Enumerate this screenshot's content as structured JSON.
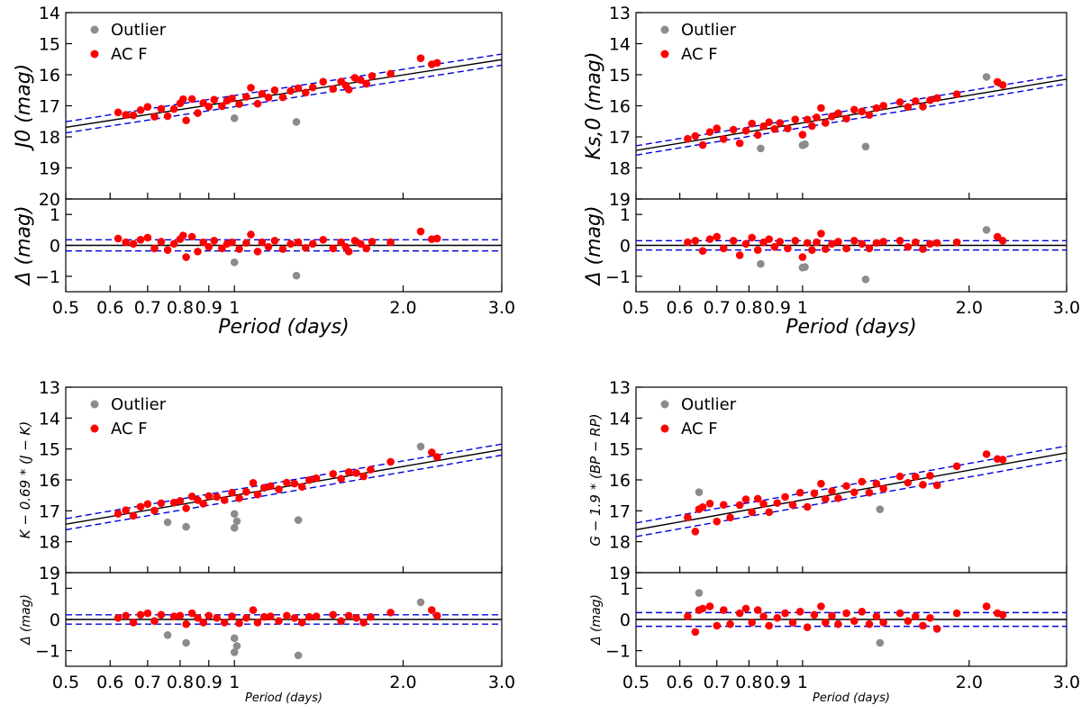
{
  "chart_data": [
    {
      "type": "scatter",
      "title": "",
      "xlabel": "Period (days)",
      "xscale": "log",
      "xlim": [
        0.5,
        3.0
      ],
      "xticks": [
        0.5,
        0.6,
        0.7,
        0.8,
        0.9,
        1,
        2.0,
        3.0
      ],
      "xtick_labels": [
        "0.5",
        "0.6",
        "0.7",
        "0.8",
        "0.9",
        "1",
        "2.0",
        "3.0"
      ],
      "top": {
        "ylabel": "J0 (mag)",
        "ylim": [
          20,
          14
        ],
        "yticks": [
          14,
          15,
          16,
          17,
          18,
          19,
          20
        ],
        "fit": {
          "a": -1.51,
          "b": -2.8
        },
        "band": 0.18
      },
      "bottom": {
        "ylabel": "Δ (mag)",
        "ylim": [
          -1.5,
          1.5
        ],
        "yticks": [
          -1,
          0,
          1
        ],
        "band": 0.18
      },
      "legend": {
        "position": "top-left",
        "items": [
          "Outlier",
          "AC F"
        ]
      },
      "series": [
        {
          "name": "AC F",
          "color": "#ff0000",
          "x": [
            0.62,
            0.64,
            0.66,
            0.68,
            0.7,
            0.72,
            0.74,
            0.76,
            0.78,
            0.8,
            0.81,
            0.82,
            0.84,
            0.86,
            0.88,
            0.9,
            0.92,
            0.95,
            0.97,
            0.99,
            1.02,
            1.05,
            1.07,
            1.1,
            1.12,
            1.15,
            1.18,
            1.22,
            1.26,
            1.3,
            1.34,
            1.38,
            1.44,
            1.5,
            1.55,
            1.58,
            1.6,
            1.64,
            1.68,
            1.72,
            1.76,
            1.9,
            2.15,
            2.25,
            2.3
          ],
          "delta": [
            0.22,
            0.1,
            0.05,
            0.18,
            0.25,
            -0.1,
            0.12,
            -0.15,
            0.05,
            0.2,
            0.32,
            -0.38,
            0.28,
            -0.2,
            0.1,
            -0.05,
            0.15,
            -0.1,
            0.05,
            0.1,
            -0.12,
            0.08,
            0.35,
            -0.2,
            0.1,
            -0.05,
            0.15,
            -0.12,
            0.05,
            0.1,
            -0.08,
            0.05,
            0.18,
            -0.1,
            0.1,
            -0.05,
            -0.2,
            0.15,
            0.05,
            -0.1,
            0.12,
            0.1,
            0.45,
            0.2,
            0.22
          ]
        },
        {
          "name": "Outlier",
          "color": "#8c8c8c",
          "x": [
            1.0,
            1.29
          ],
          "delta": [
            -0.55,
            -0.98
          ]
        }
      ]
    },
    {
      "type": "scatter",
      "title": "",
      "xlabel": "Period (days)",
      "xscale": "log",
      "xlim": [
        0.5,
        3.0
      ],
      "xticks": [
        0.5,
        0.6,
        0.7,
        0.8,
        0.9,
        1,
        2.0,
        3.0
      ],
      "xtick_labels": [
        "0.5",
        "0.6",
        "0.7",
        "0.8",
        "0.9",
        "1",
        "2.0",
        "3.0"
      ],
      "top": {
        "ylabel": "Ks,0 (mag)",
        "ylim": [
          19,
          13
        ],
        "yticks": [
          13,
          14,
          15,
          16,
          17,
          18,
          19
        ],
        "fit": {
          "a": -1.62,
          "b": -2.95
        },
        "band": 0.15
      },
      "bottom": {
        "ylabel": "Δ (mag)",
        "ylim": [
          -1.5,
          1.5
        ],
        "yticks": [
          -1,
          0,
          1
        ],
        "band": 0.15
      },
      "legend": {
        "position": "top-left",
        "items": [
          "Outlier",
          "AC F"
        ]
      },
      "series": [
        {
          "name": "AC F",
          "color": "#ff0000",
          "x": [
            0.62,
            0.64,
            0.66,
            0.68,
            0.7,
            0.72,
            0.75,
            0.77,
            0.79,
            0.81,
            0.83,
            0.85,
            0.87,
            0.89,
            0.91,
            0.94,
            0.97,
            1.0,
            1.02,
            1.04,
            1.06,
            1.08,
            1.1,
            1.13,
            1.16,
            1.2,
            1.24,
            1.28,
            1.32,
            1.36,
            1.4,
            1.5,
            1.55,
            1.6,
            1.65,
            1.7,
            1.75,
            1.9,
            2.25,
            2.3
          ],
          "delta": [
            0.1,
            0.15,
            -0.18,
            0.2,
            0.28,
            -0.1,
            0.15,
            -0.32,
            0.05,
            0.25,
            -0.15,
            0.1,
            0.2,
            -0.05,
            0.12,
            -0.1,
            0.15,
            -0.38,
            0.08,
            -0.15,
            0.1,
            0.38,
            -0.12,
            0.05,
            0.12,
            -0.1,
            0.15,
            0.05,
            -0.1,
            0.08,
            0.12,
            0.15,
            -0.05,
            0.1,
            -0.12,
            0.05,
            0.08,
            0.1,
            0.28,
            0.15
          ]
        },
        {
          "name": "Outlier",
          "color": "#8c8c8c",
          "x": [
            0.84,
            1.0,
            1.01,
            1.3,
            2.15
          ],
          "delta": [
            -0.6,
            -0.72,
            -0.7,
            -1.1,
            0.5
          ]
        }
      ]
    },
    {
      "type": "scatter",
      "title": "",
      "xlabel": "Period (days)",
      "xscale": "log",
      "xlim": [
        0.5,
        3.0
      ],
      "xticks": [
        0.5,
        0.6,
        0.7,
        0.8,
        0.9,
        1,
        2.0,
        3.0
      ],
      "xtick_labels": [
        "0.5",
        "0.6",
        "0.7",
        "0.8",
        "0.9",
        "1",
        "2.0",
        "3.0"
      ],
      "top": {
        "ylabel": "K − 0.69 * (J − K)",
        "ylim": [
          19,
          13
        ],
        "yticks": [
          13,
          14,
          15,
          16,
          17,
          18,
          19
        ],
        "fit": {
          "a": -1.51,
          "b": -3.1
        },
        "band": 0.18
      },
      "bottom": {
        "ylabel": "Δ (mag)",
        "ylim": [
          -1.5,
          1.5
        ],
        "yticks": [
          -1,
          0,
          1
        ],
        "band": 0.15
      },
      "legend": {
        "position": "top-left",
        "items": [
          "Outlier",
          "AC F"
        ]
      },
      "series": [
        {
          "name": "AC F",
          "color": "#ff0000",
          "x": [
            0.62,
            0.64,
            0.66,
            0.68,
            0.7,
            0.72,
            0.74,
            0.78,
            0.8,
            0.82,
            0.84,
            0.86,
            0.88,
            0.9,
            0.93,
            0.96,
            0.99,
            1.02,
            1.05,
            1.08,
            1.1,
            1.13,
            1.16,
            1.2,
            1.24,
            1.28,
            1.32,
            1.36,
            1.4,
            1.5,
            1.55,
            1.6,
            1.65,
            1.7,
            1.75,
            1.9,
            2.25,
            2.3
          ],
          "delta": [
            0.05,
            0.12,
            -0.1,
            0.15,
            0.2,
            -0.05,
            0.15,
            0.1,
            0.12,
            -0.15,
            0.2,
            0.05,
            -0.1,
            0.12,
            0.05,
            -0.1,
            0.1,
            -0.12,
            0.05,
            0.3,
            -0.1,
            0.08,
            0.1,
            -0.05,
            0.12,
            0.05,
            -0.1,
            0.08,
            0.1,
            0.15,
            -0.05,
            0.12,
            0.05,
            -0.1,
            0.08,
            0.22,
            0.3,
            0.12
          ]
        },
        {
          "name": "Outlier",
          "color": "#8c8c8c",
          "x": [
            0.76,
            0.82,
            1.0,
            1.0,
            1.01,
            1.3,
            2.15
          ],
          "delta": [
            -0.5,
            -0.75,
            -0.6,
            -1.05,
            -0.85,
            -1.15,
            0.55
          ]
        }
      ]
    },
    {
      "type": "scatter",
      "title": "",
      "xlabel": "Period (days)",
      "xscale": "log",
      "xlim": [
        0.5,
        3.0
      ],
      "xticks": [
        0.5,
        0.6,
        0.7,
        0.8,
        0.9,
        1,
        2.0,
        3.0
      ],
      "xtick_labels": [
        "0.5",
        "0.6",
        "0.7",
        "0.8",
        "0.9",
        "1",
        "2.0",
        "3.0"
      ],
      "top": {
        "ylabel": "G − 1.9 * (BP − RP)",
        "ylim": [
          19,
          13
        ],
        "yticks": [
          13,
          14,
          15,
          16,
          17,
          18,
          19
        ],
        "fit": {
          "a": -1.24,
          "b": -3.2
        },
        "band": 0.22
      },
      "bottom": {
        "ylabel": "Δ (mag)",
        "ylim": [
          -1.5,
          1.5
        ],
        "yticks": [
          -1,
          0,
          1
        ],
        "band": 0.22
      },
      "legend": {
        "position": "top-left",
        "items": [
          "Outlier",
          "AC F"
        ]
      },
      "series": [
        {
          "name": "AC F",
          "color": "#ff0000",
          "x": [
            0.62,
            0.64,
            0.65,
            0.66,
            0.68,
            0.7,
            0.72,
            0.74,
            0.77,
            0.79,
            0.81,
            0.83,
            0.85,
            0.87,
            0.9,
            0.93,
            0.96,
            0.99,
            1.02,
            1.05,
            1.08,
            1.1,
            1.13,
            1.16,
            1.2,
            1.24,
            1.28,
            1.32,
            1.36,
            1.4,
            1.5,
            1.55,
            1.6,
            1.65,
            1.7,
            1.75,
            1.9,
            2.15,
            2.25,
            2.3
          ],
          "delta": [
            0.1,
            -0.4,
            0.3,
            0.35,
            0.42,
            -0.2,
            0.3,
            -0.15,
            0.2,
            0.35,
            -0.1,
            0.3,
            0.1,
            -0.2,
            0.05,
            0.2,
            -0.1,
            0.25,
            -0.25,
            0.15,
            0.42,
            -0.1,
            0.12,
            -0.15,
            0.2,
            -0.05,
            0.25,
            -0.15,
            0.1,
            -0.1,
            0.2,
            -0.05,
            0.1,
            -0.2,
            0.05,
            -0.3,
            0.2,
            0.42,
            0.2,
            0.15
          ]
        },
        {
          "name": "Outlier",
          "color": "#8c8c8c",
          "x": [
            0.65,
            1.38
          ],
          "delta": [
            0.85,
            -0.75
          ]
        }
      ]
    }
  ]
}
